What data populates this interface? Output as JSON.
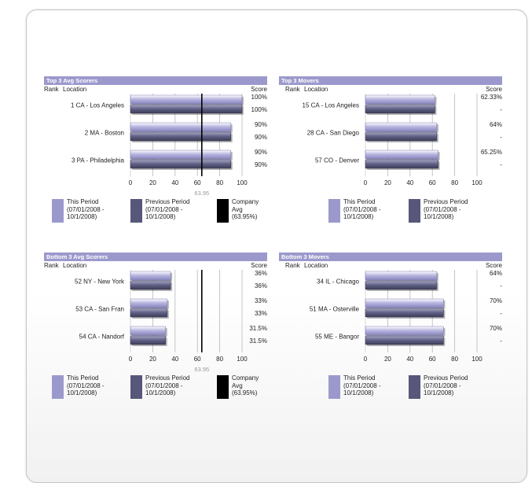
{
  "panels": [
    {
      "title": "Top 3 Avg Scorers",
      "headers": {
        "rank": "Rank",
        "location": "Location",
        "score": "Score"
      },
      "show_avg": true,
      "legend": {
        "this_period": "This Period (07/01/2008 - 10/1/2008)",
        "previous_period": "Previous Period (07/01/2008 - 10/1/2008)",
        "company_avg": "Company Avg (63.95%)"
      }
    },
    {
      "title": "Top 3 Movers",
      "headers": {
        "rank": "Rank",
        "location": "Location",
        "score": "Score"
      },
      "show_avg": false,
      "legend": {
        "this_period": "This Period (07/01/2008 - 10/1/2008)",
        "previous_period": "Previous Period (07/01/2008 - 10/1/2008)"
      }
    },
    {
      "title": "Bottom 3 Avg Scorers",
      "headers": {
        "rank": "Rank",
        "location": "Location",
        "score": "Score"
      },
      "show_avg": true,
      "legend": {
        "this_period": "This Period (07/01/2008 - 10/1/2008)",
        "previous_period": "Previous Period (07/01/2008 - 10/1/2008)",
        "company_avg": "Company Avg (63.95%)"
      }
    },
    {
      "title": "Bottom 3 Movers",
      "headers": {
        "rank": "Rank",
        "location": "Location",
        "score": "Score"
      },
      "show_avg": false,
      "legend": {
        "this_period": "This Period (07/01/2008 - 10/1/2008)",
        "previous_period": "Previous Period (07/01/2008 - 10/1/2008)"
      }
    }
  ],
  "colors": {
    "this_period": "#9b99cc",
    "previous_period": "#57577a",
    "company_avg": "#000000",
    "header": "#9b99cc"
  },
  "chart_data": [
    {
      "type": "bar",
      "title": "Top 3 Avg Scorers",
      "categories": [
        "1 CA - Los Angeles",
        "2 MA - Boston",
        "3 PA - Philadelphia"
      ],
      "series": [
        {
          "name": "This Period (07/01/2008 - 10/1/2008)",
          "values": [
            100,
            90,
            90
          ],
          "labels": [
            "100%",
            "90%",
            "90%"
          ]
        },
        {
          "name": "Previous Period (07/01/2008 - 10/1/2008)",
          "values": [
            100,
            90,
            90
          ],
          "labels": [
            "100%",
            "90%",
            "90%"
          ]
        }
      ],
      "company_avg": 63.95,
      "company_avg_label": "63.95",
      "xticks": [
        0,
        20,
        40,
        60,
        80,
        100
      ],
      "xlim": [
        0,
        100
      ]
    },
    {
      "type": "bar",
      "title": "Top 3 Movers",
      "categories": [
        "15 CA - Los Angeles",
        "28 CA - San Diego",
        "57 CO - Denver"
      ],
      "series": [
        {
          "name": "This Period (07/01/2008 - 10/1/2008)",
          "values": [
            62.33,
            64,
            65.25
          ],
          "labels": [
            "62.33%",
            "64%",
            "65.25%"
          ]
        },
        {
          "name": "Previous Period (07/01/2008 - 10/1/2008)",
          "values": [
            62.33,
            64,
            65.25
          ],
          "labels": [
            "-",
            "-",
            "-"
          ]
        }
      ],
      "xticks": [
        0,
        20,
        40,
        60,
        80,
        100
      ],
      "xlim": [
        0,
        100
      ]
    },
    {
      "type": "bar",
      "title": "Bottom 3 Avg Scorers",
      "categories": [
        "52 NY - New York",
        "53 CA - San Fran",
        "54 CA - Nandorf"
      ],
      "series": [
        {
          "name": "This Period (07/01/2008 - 10/1/2008)",
          "values": [
            36,
            33,
            31.5
          ],
          "labels": [
            "36%",
            "33%",
            "31.5%"
          ]
        },
        {
          "name": "Previous Period (07/01/2008 - 10/1/2008)",
          "values": [
            36,
            33,
            31.5
          ],
          "labels": [
            "36%",
            "33%",
            "31.5%"
          ]
        }
      ],
      "company_avg": 63.95,
      "company_avg_label": "63.95",
      "xticks": [
        0,
        20,
        40,
        60,
        80,
        100
      ],
      "xlim": [
        0,
        100
      ]
    },
    {
      "type": "bar",
      "title": "Bottom 3 Movers",
      "categories": [
        "34 IL - Chicago",
        "51 MA - Osterville",
        "55 ME - Bangor"
      ],
      "series": [
        {
          "name": "This Period (07/01/2008 - 10/1/2008)",
          "values": [
            64,
            70,
            70
          ],
          "labels": [
            "64%",
            "70%",
            "70%"
          ]
        },
        {
          "name": "Previous Period (07/01/2008 - 10/1/2008)",
          "values": [
            64,
            70,
            70
          ],
          "labels": [
            "-",
            "-",
            "-"
          ]
        }
      ],
      "xticks": [
        0,
        20,
        40,
        60,
        80,
        100
      ],
      "xlim": [
        0,
        100
      ]
    }
  ]
}
